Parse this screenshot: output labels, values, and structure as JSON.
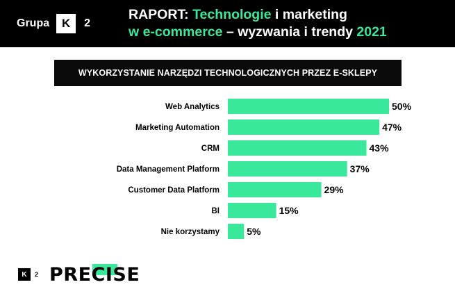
{
  "brand": {
    "grupa": "Grupa",
    "k": "K",
    "two": "2"
  },
  "title": {
    "raport": "RAPORT:",
    "technologie": "Technologie",
    "i_marketing": "i marketing",
    "w_ecommerce": "w e-commerce",
    "rest": "– wyzwania i trendy",
    "year": "2021"
  },
  "colors": {
    "accent": "#3ae89b",
    "dark": "#000000"
  },
  "chart_data": {
    "type": "bar",
    "orientation": "horizontal",
    "title": "WYKORZYSTANIE NARZĘDZI TECHNOLOGICZNYCH PRZEZ E-SKLEPY",
    "categories": [
      "Web Analytics",
      "Marketing Automation",
      "CRM",
      "Data Management Platform",
      "Customer Data Platform",
      "BI",
      "Nie korzystamy"
    ],
    "values": [
      50,
      47,
      43,
      37,
      29,
      15,
      5
    ],
    "value_labels": [
      "50%",
      "47%",
      "43%",
      "37%",
      "29%",
      "15%",
      "5%"
    ],
    "unit": "%",
    "xlim": [
      0,
      50
    ],
    "grid": false,
    "legend": "none",
    "bar_color": "#3ae89b"
  },
  "footer": {
    "k": "K",
    "two": "2",
    "precise": "PRECISE"
  }
}
